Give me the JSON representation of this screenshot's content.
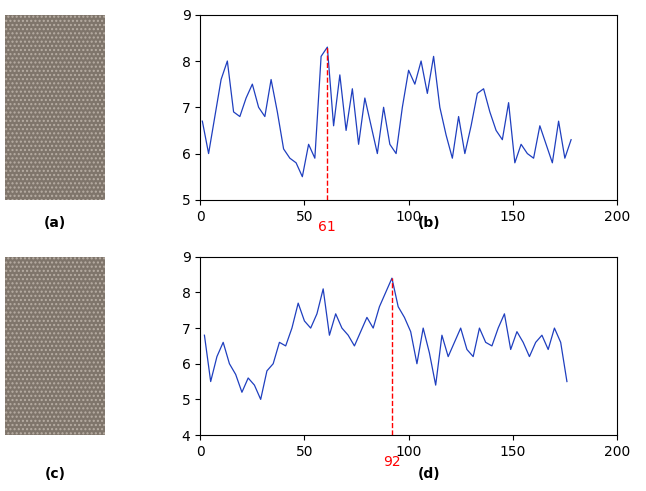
{
  "chart_data": [
    {
      "type": "image",
      "caption": "(a)"
    },
    {
      "type": "line",
      "caption": "(b)",
      "color": "#1f3fbf",
      "x": [
        1,
        4,
        7,
        10,
        13,
        16,
        19,
        22,
        25,
        28,
        31,
        34,
        37,
        40,
        43,
        46,
        49,
        52,
        55,
        58,
        61,
        64,
        67,
        70,
        73,
        76,
        79,
        82,
        85,
        88,
        91,
        94,
        97,
        100,
        103,
        106,
        109,
        112,
        115,
        118,
        121,
        124,
        127,
        130,
        133,
        136,
        139,
        142,
        145,
        148,
        151,
        154,
        157,
        160,
        163,
        166,
        169,
        172,
        175,
        178
      ],
      "values": [
        6.7,
        6.0,
        6.8,
        7.6,
        8.0,
        6.9,
        6.8,
        7.2,
        7.5,
        7.0,
        6.8,
        7.6,
        6.9,
        6.1,
        5.9,
        5.8,
        5.5,
        6.2,
        5.9,
        8.1,
        8.3,
        6.6,
        7.7,
        6.5,
        7.4,
        6.2,
        7.2,
        6.6,
        6.0,
        7.0,
        6.2,
        6.0,
        7.0,
        7.8,
        7.5,
        8.0,
        7.3,
        8.1,
        7.0,
        6.4,
        5.9,
        6.8,
        6.0,
        6.6,
        7.3,
        7.4,
        6.9,
        6.5,
        6.3,
        7.1,
        5.8,
        6.2,
        6.0,
        5.9,
        6.6,
        6.2,
        5.8,
        6.7,
        5.9,
        6.3
      ],
      "xlim": [
        0,
        200
      ],
      "xticks": [
        0,
        50,
        100,
        150,
        200
      ],
      "ylim": [
        5,
        9
      ],
      "yticks": [
        5,
        6,
        7,
        8,
        9
      ],
      "annotations": [
        {
          "x": 61,
          "text": "61",
          "color": "#ff0000"
        }
      ]
    },
    {
      "type": "image",
      "caption": "(c)"
    },
    {
      "type": "line",
      "caption": "(d)",
      "color": "#1f3fbf",
      "x": [
        2,
        5,
        8,
        11,
        14,
        17,
        20,
        23,
        26,
        29,
        32,
        35,
        38,
        41,
        44,
        47,
        50,
        53,
        56,
        59,
        62,
        65,
        68,
        71,
        74,
        77,
        80,
        83,
        86,
        89,
        92,
        95,
        98,
        101,
        104,
        107,
        110,
        113,
        116,
        119,
        122,
        125,
        128,
        131,
        134,
        137,
        140,
        143,
        146,
        149,
        152,
        155,
        158,
        161,
        164,
        167,
        170,
        173,
        176
      ],
      "values": [
        6.8,
        5.5,
        6.2,
        6.6,
        6.0,
        5.7,
        5.2,
        5.6,
        5.4,
        5.0,
        5.8,
        6.0,
        6.6,
        6.5,
        7.0,
        7.7,
        7.2,
        7.0,
        7.4,
        8.1,
        6.8,
        7.4,
        7.0,
        6.8,
        6.5,
        6.9,
        7.3,
        7.0,
        7.6,
        8.0,
        8.4,
        7.6,
        7.3,
        6.9,
        6.0,
        7.0,
        6.3,
        5.4,
        6.8,
        6.2,
        6.6,
        7.0,
        6.4,
        6.2,
        7.0,
        6.6,
        6.5,
        7.0,
        7.4,
        6.4,
        6.9,
        6.6,
        6.2,
        6.6,
        6.8,
        6.4,
        7.0,
        6.6,
        5.5
      ],
      "xlim": [
        0,
        200
      ],
      "xticks": [
        0,
        50,
        100,
        150,
        200
      ],
      "ylim": [
        4,
        9
      ],
      "yticks": [
        4,
        5,
        6,
        7,
        8,
        9
      ],
      "annotations": [
        {
          "x": 92,
          "text": "92",
          "color": "#ff0000"
        }
      ]
    }
  ]
}
